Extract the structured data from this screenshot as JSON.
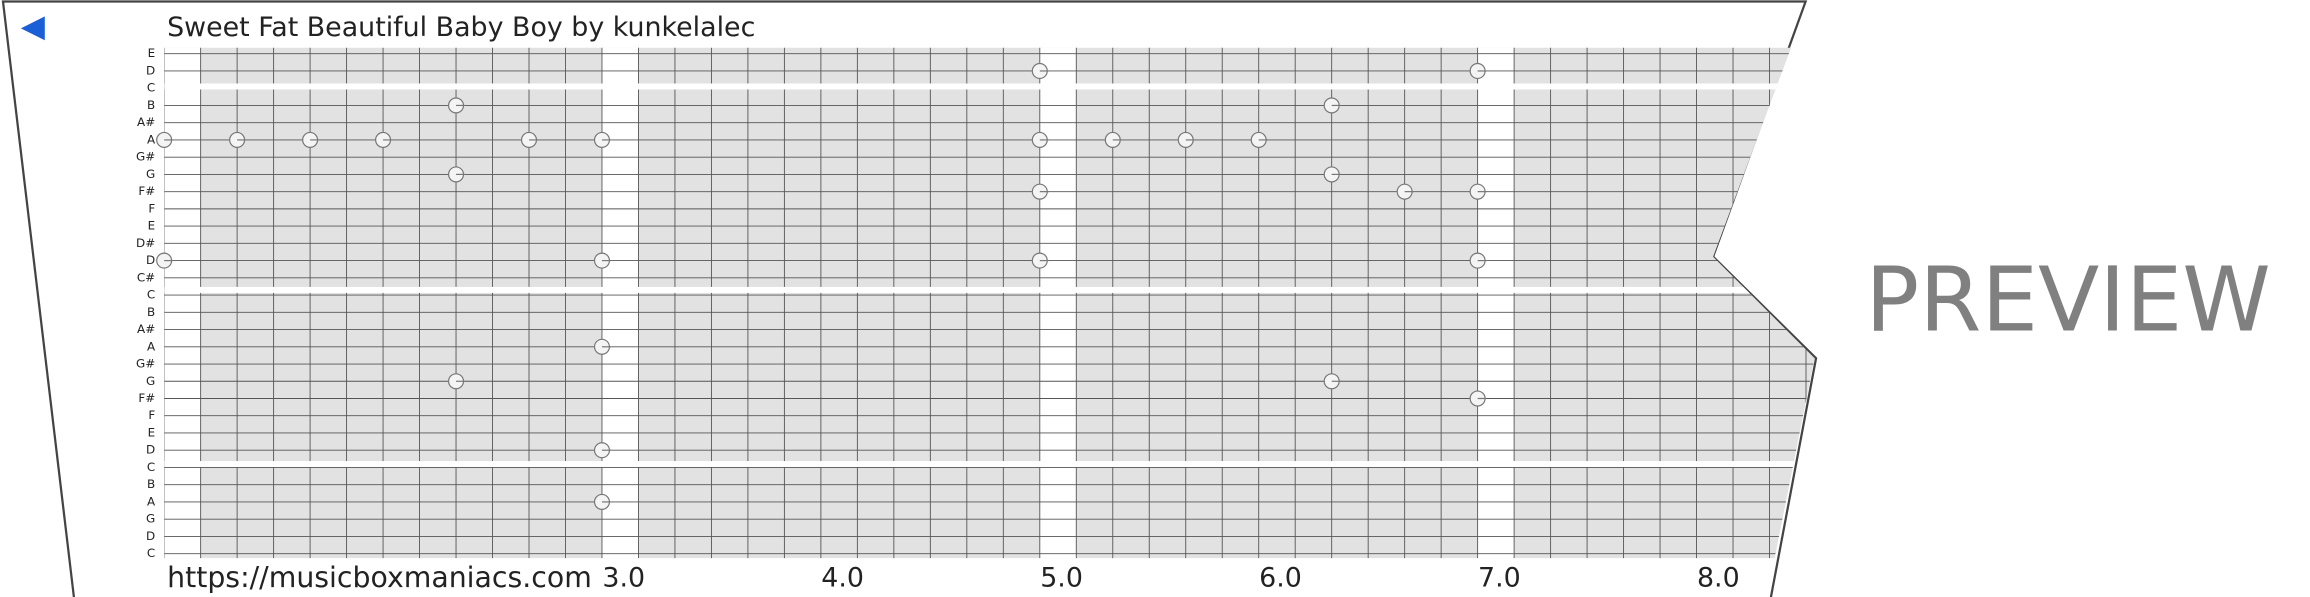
{
  "title": "Sweet Fat Beautiful Baby Boy by kunkelalec",
  "pitch_labels": [
    "E",
    "D",
    "C",
    "B",
    "A#",
    "A",
    "G#",
    "G",
    "F#",
    "F",
    "E",
    "D#",
    "D",
    "C#",
    "C",
    "B",
    "A#",
    "A",
    "G#",
    "G",
    "F#",
    "F",
    "E",
    "D",
    "C",
    "B",
    "A",
    "G",
    "D",
    "C"
  ],
  "measure_labels": [
    "3.0",
    "4.0",
    "5.0",
    "6.0",
    "7.0",
    "8.0"
  ],
  "url": "https://musicboxmaniacs.com",
  "watermark": "PREVIEW"
}
